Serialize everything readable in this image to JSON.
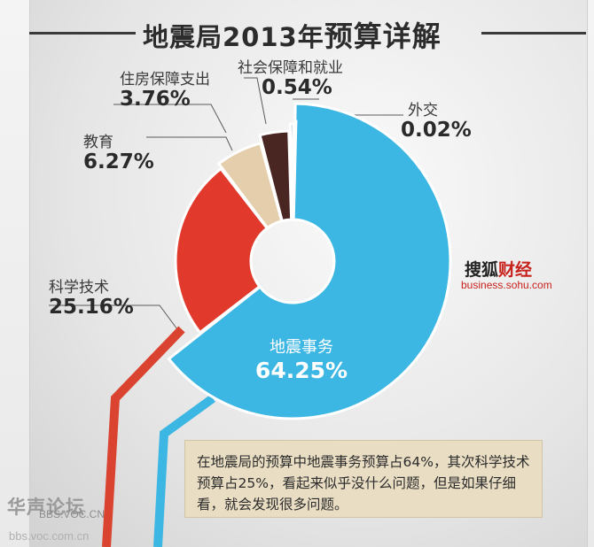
{
  "title": {
    "main": "地震局2013年",
    "emphasis": "预算详解"
  },
  "chart_data": {
    "type": "pie",
    "title": "地震局2013年预算详解",
    "categories": [
      "地震事务",
      "科学技术",
      "教育",
      "住房保障支出",
      "社会保障和就业",
      "外交"
    ],
    "values": [
      64.25,
      25.16,
      6.27,
      3.76,
      0.54,
      0.02
    ],
    "value_labels": [
      "64.25%",
      "25.16%",
      "6.27%",
      "3.76%",
      "0.54%",
      "0.02%"
    ],
    "colors": [
      "#3cb6e3",
      "#e13a2c",
      "#e5ceab",
      "#4a2623",
      "#5a7c98",
      "#8a6a4a"
    ],
    "unit": "%"
  },
  "brand": {
    "name_black": "搜狐",
    "name_red": "财经",
    "url": "business.sohu.com"
  },
  "note": {
    "text": "在地震局的预算中地震事务预算占64%，其次科学技术预算占25%，看起来似乎没什么问题，但是如果仔细看，就会发现很多问题。"
  },
  "watermark": {
    "forum_name": "华声论坛",
    "forum_latin": "BBS.VOC.CN",
    "url": "bbs.voc.com.cn"
  }
}
